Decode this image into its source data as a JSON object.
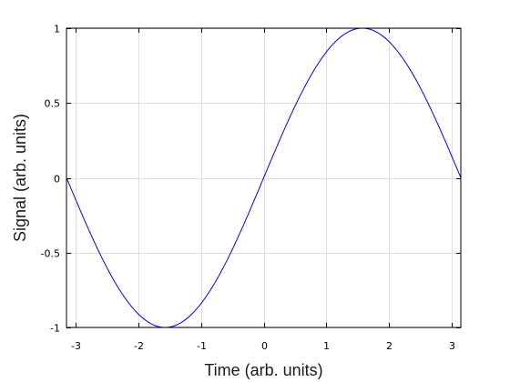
{
  "chart_data": {
    "type": "line",
    "xlabel": "Time (arb. units)",
    "ylabel": "Signal (arb. units)",
    "xlim": [
      -3.14159,
      3.14159
    ],
    "ylim": [
      -1,
      1
    ],
    "grid": true,
    "x_ticks": [
      -3,
      -2,
      -1,
      0,
      1,
      2,
      3
    ],
    "x_tick_labels": [
      "-3",
      "-2",
      "-1",
      "0",
      "1",
      "2",
      "3"
    ],
    "y_ticks": [
      1,
      0.5,
      0,
      -0.5,
      -1
    ],
    "y_tick_labels": [
      "1",
      "0.5",
      "0",
      "-0.5",
      "-1"
    ],
    "series": [
      {
        "color": "#0000ff",
        "function": "sin",
        "x": [
          -3.14159,
          -2.618,
          -2.0944,
          -1.5708,
          -1.0472,
          -0.5236,
          0,
          0.5236,
          1.0472,
          1.5708,
          2.0944,
          2.618,
          3.14159
        ],
        "y": [
          0,
          -0.5,
          -0.866,
          -1,
          -0.866,
          -0.5,
          0,
          0.5,
          0.866,
          1,
          0.866,
          0.5,
          0
        ]
      }
    ]
  }
}
